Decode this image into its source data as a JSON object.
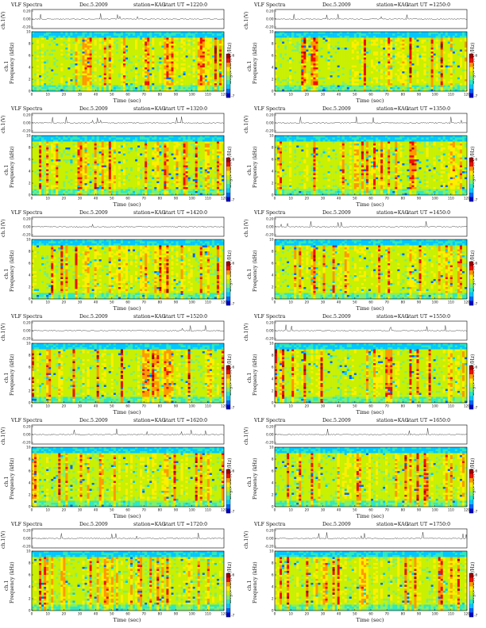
{
  "chart_data": [
    {
      "type": "heatmap",
      "title": "VLF Spectra",
      "date": "Dec.5.2009",
      "station": "station=KAG",
      "start": "start  UT  =1220:0",
      "line_label": "ch.1(V)",
      "line_ticks": [
        "0.20",
        "0.00",
        "-0.20"
      ],
      "spec_label": "ch.1",
      "ylabel": "Frequency  (kHz)",
      "yticks": [
        "10",
        "8",
        "6",
        "4",
        "2",
        "0"
      ],
      "xlabel": "Time  (sec)",
      "xticks": [
        "0",
        "10",
        "20",
        "30",
        "40",
        "50",
        "60",
        "70",
        "80",
        "90",
        "100",
        "110",
        "120"
      ],
      "xlim": [
        0,
        120
      ],
      "ylim": [
        0,
        10
      ],
      "colorbar_label": "Log(PSD)(V²/Hz)",
      "colorbar_ticks": [
        "-6",
        "-7"
      ]
    },
    {
      "type": "heatmap",
      "title": "VLF Spectra",
      "date": "Dec.5.2009",
      "station": "station=KAG",
      "start": "start  UT  =1250:0",
      "line_label": "ch.1(V)",
      "line_ticks": [
        "0.20",
        "0.00",
        "-0.20"
      ],
      "spec_label": "ch.1",
      "ylabel": "Frequency  (kHz)",
      "yticks": [
        "10",
        "8",
        "6",
        "4",
        "2",
        "0"
      ],
      "xlabel": "Time  (sec)",
      "xticks": [
        "0",
        "10",
        "20",
        "30",
        "40",
        "50",
        "60",
        "70",
        "80",
        "90",
        "100",
        "110",
        "120"
      ],
      "xlim": [
        0,
        120
      ],
      "ylim": [
        0,
        10
      ],
      "colorbar_label": "Log(PSD)(V²/Hz)",
      "colorbar_ticks": [
        "-6",
        "-7"
      ]
    },
    {
      "type": "heatmap",
      "title": "VLF Spectra",
      "date": "Dec.5.2009",
      "station": "station=KAG",
      "start": "start  UT  =1320:0",
      "line_label": "ch.1(V)",
      "line_ticks": [
        "0.20",
        "0.00",
        "-0.20"
      ],
      "spec_label": "ch.1",
      "ylabel": "Frequency  (kHz)",
      "yticks": [
        "10",
        "8",
        "6",
        "4",
        "2",
        "0"
      ],
      "xlabel": "Time  (sec)",
      "xticks": [
        "0",
        "10",
        "20",
        "30",
        "40",
        "50",
        "60",
        "70",
        "80",
        "90",
        "100",
        "110",
        "120"
      ],
      "xlim": [
        0,
        120
      ],
      "ylim": [
        0,
        10
      ],
      "colorbar_label": "Log(PSD)(V²/Hz)",
      "colorbar_ticks": [
        "-6",
        "-7"
      ]
    },
    {
      "type": "heatmap",
      "title": "VLF Spectra",
      "date": "Dec.5.2009",
      "station": "station=KAG",
      "start": "start  UT  =1350:0",
      "line_label": "ch.1(V)",
      "line_ticks": [
        "0.20",
        "0.00",
        "-0.20"
      ],
      "spec_label": "ch.1",
      "ylabel": "Frequency  (kHz)",
      "yticks": [
        "10",
        "8",
        "6",
        "4",
        "2",
        "0"
      ],
      "xlabel": "Time  (sec)",
      "xticks": [
        "0",
        "10",
        "20",
        "30",
        "40",
        "50",
        "60",
        "70",
        "80",
        "90",
        "100",
        "110",
        "120"
      ],
      "xlim": [
        0,
        120
      ],
      "ylim": [
        0,
        10
      ],
      "colorbar_label": "Log(PSD)(V²/Hz)",
      "colorbar_ticks": [
        "-6",
        "-7"
      ]
    },
    {
      "type": "heatmap",
      "title": "VLF Spectra",
      "date": "Dec.5.2009",
      "station": "station=KAG",
      "start": "start  UT  =1420:0",
      "line_label": "ch.1(V)",
      "line_ticks": [
        "0.20",
        "0.00",
        "-0.20"
      ],
      "spec_label": "ch.1",
      "ylabel": "Frequency  (kHz)",
      "yticks": [
        "10",
        "8",
        "6",
        "4",
        "2",
        "0"
      ],
      "xlabel": "Time  (sec)",
      "xticks": [
        "0",
        "10",
        "20",
        "30",
        "40",
        "50",
        "60",
        "70",
        "80",
        "90",
        "100",
        "110",
        "120"
      ],
      "xlim": [
        0,
        120
      ],
      "ylim": [
        0,
        10
      ],
      "colorbar_label": "Log(PSD)(V²/Hz)",
      "colorbar_ticks": [
        "-6",
        "-7"
      ]
    },
    {
      "type": "heatmap",
      "title": "VLF Spectra",
      "date": "Dec.5.2009",
      "station": "station=KAG",
      "start": "start  UT  =1450:0",
      "line_label": "ch.1(V)",
      "line_ticks": [
        "0.20",
        "0.00",
        "-0.20"
      ],
      "spec_label": "ch.1",
      "ylabel": "Frequency  (kHz)",
      "yticks": [
        "10",
        "8",
        "6",
        "4",
        "2",
        "0"
      ],
      "xlabel": "Time  (sec)",
      "xticks": [
        "0",
        "10",
        "20",
        "30",
        "40",
        "50",
        "60",
        "70",
        "80",
        "90",
        "100",
        "110",
        "120"
      ],
      "xlim": [
        0,
        120
      ],
      "ylim": [
        0,
        10
      ],
      "colorbar_label": "Log(PSD)(V²/Hz)",
      "colorbar_ticks": [
        "-6",
        "-7"
      ]
    },
    {
      "type": "heatmap",
      "title": "VLF Spectra",
      "date": "Dec.5.2009",
      "station": "station=KAG",
      "start": "start  UT  =1520:0",
      "line_label": "ch.1(V)",
      "line_ticks": [
        "0.20",
        "0.00",
        "-0.20"
      ],
      "spec_label": "ch.1",
      "ylabel": "Frequency  (kHz)",
      "yticks": [
        "10",
        "8",
        "6",
        "4",
        "2",
        "0"
      ],
      "xlabel": "Time  (sec)",
      "xticks": [
        "0",
        "10",
        "20",
        "30",
        "40",
        "50",
        "60",
        "70",
        "80",
        "90",
        "100",
        "110",
        "120"
      ],
      "xlim": [
        0,
        120
      ],
      "ylim": [
        0,
        10
      ],
      "colorbar_label": "Log(PSD)(V²/Hz)",
      "colorbar_ticks": [
        "-6",
        "-7"
      ]
    },
    {
      "type": "heatmap",
      "title": "VLF Spectra",
      "date": "Dec.5.2009",
      "station": "station=KAG",
      "start": "start  UT  =1550:0",
      "line_label": "ch.1(V)",
      "line_ticks": [
        "0.20",
        "0.00",
        "-0.20"
      ],
      "spec_label": "ch.1",
      "ylabel": "Frequency  (kHz)",
      "yticks": [
        "10",
        "8",
        "6",
        "4",
        "2",
        "0"
      ],
      "xlabel": "Time  (sec)",
      "xticks": [
        "0",
        "10",
        "20",
        "30",
        "40",
        "50",
        "60",
        "70",
        "80",
        "90",
        "100",
        "110",
        "120"
      ],
      "xlim": [
        0,
        120
      ],
      "ylim": [
        0,
        10
      ],
      "colorbar_label": "Log(PSD)(V²/Hz)",
      "colorbar_ticks": [
        "-6",
        "-7"
      ]
    },
    {
      "type": "heatmap",
      "title": "VLF Spectra",
      "date": "Dec.5.2009",
      "station": "station=KAG",
      "start": "start  UT  =1620:0",
      "line_label": "ch.1(V)",
      "line_ticks": [
        "0.20",
        "0.00",
        "-0.20"
      ],
      "spec_label": "ch.1",
      "ylabel": "Frequency  (kHz)",
      "yticks": [
        "10",
        "8",
        "6",
        "4",
        "2",
        "0"
      ],
      "xlabel": "Time  (sec)",
      "xticks": [
        "0",
        "10",
        "20",
        "30",
        "40",
        "50",
        "60",
        "70",
        "80",
        "90",
        "100",
        "110",
        "120"
      ],
      "xlim": [
        0,
        120
      ],
      "ylim": [
        0,
        10
      ],
      "colorbar_label": "Log(PSD)(V²/Hz)",
      "colorbar_ticks": [
        "-6",
        "-7"
      ]
    },
    {
      "type": "heatmap",
      "title": "VLF Spectra",
      "date": "Dec.5.2009",
      "station": "station=KAG",
      "start": "start  UT  =1650:0",
      "line_label": "ch.1(V)",
      "line_ticks": [
        "0.20",
        "0.00",
        "-0.20"
      ],
      "spec_label": "ch.1",
      "ylabel": "Frequency  (kHz)",
      "yticks": [
        "10",
        "8",
        "6",
        "4",
        "2",
        "0"
      ],
      "xlabel": "Time  (sec)",
      "xticks": [
        "0",
        "10",
        "20",
        "30",
        "40",
        "50",
        "60",
        "70",
        "80",
        "90",
        "100",
        "110",
        "120"
      ],
      "xlim": [
        0,
        120
      ],
      "ylim": [
        0,
        10
      ],
      "colorbar_label": "Log(PSD)(V²/Hz)",
      "colorbar_ticks": [
        "-6",
        "-7"
      ]
    },
    {
      "type": "heatmap",
      "title": "VLF Spectra",
      "date": "Dec.5.2009",
      "station": "station=KAG",
      "start": "start  UT  =1720:0",
      "line_label": "ch.1(V)",
      "line_ticks": [
        "0.20",
        "0.00",
        "-0.20"
      ],
      "spec_label": "ch.1",
      "ylabel": "Frequency  (kHz)",
      "yticks": [
        "10",
        "8",
        "6",
        "4",
        "2",
        "0"
      ],
      "xlabel": "Time  (sec)",
      "xticks": [
        "0",
        "10",
        "20",
        "30",
        "40",
        "50",
        "60",
        "70",
        "80",
        "90",
        "100",
        "110",
        "120"
      ],
      "xlim": [
        0,
        120
      ],
      "ylim": [
        0,
        10
      ],
      "colorbar_label": "Log(PSD)(V²/Hz)",
      "colorbar_ticks": [
        "-6",
        "-7"
      ]
    },
    {
      "type": "heatmap",
      "title": "VLF Spectra",
      "date": "Dec.5.2009",
      "station": "station=KAG",
      "start": "start  UT  =1750:0",
      "line_label": "ch.1(V)",
      "line_ticks": [
        "0.20",
        "0.00",
        "-0.20"
      ],
      "spec_label": "ch.1",
      "ylabel": "Frequency  (kHz)",
      "yticks": [
        "10",
        "8",
        "6",
        "4",
        "2",
        "0"
      ],
      "xlabel": "Time  (sec)",
      "xticks": [
        "0",
        "10",
        "20",
        "30",
        "40",
        "50",
        "60",
        "70",
        "80",
        "90",
        "100",
        "110",
        "120"
      ],
      "xlim": [
        0,
        120
      ],
      "ylim": [
        0,
        10
      ],
      "colorbar_label": "Log(PSD)(V²/Hz)",
      "colorbar_ticks": [
        "-6",
        "-7"
      ]
    }
  ],
  "colorscale": [
    "#0000c8",
    "#0066ff",
    "#00c8ff",
    "#2ee8c0",
    "#7ff06a",
    "#c8f000",
    "#ffee00",
    "#ff9900",
    "#ee1100",
    "#a00000"
  ]
}
